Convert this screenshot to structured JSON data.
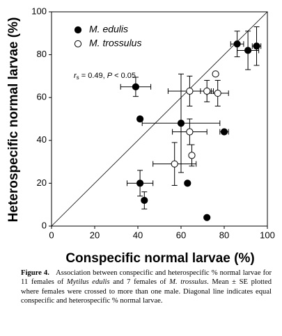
{
  "chart_data": {
    "type": "scatter",
    "xlabel": "Conspecific normal larvae (%)",
    "ylabel": "Heterospecific normal larvae (%)",
    "xlim": [
      0,
      100
    ],
    "ylim": [
      0,
      100
    ],
    "xticks": [
      0,
      20,
      40,
      60,
      80,
      100
    ],
    "yticks": [
      0,
      20,
      40,
      60,
      80,
      100
    ],
    "legend": "upper left",
    "annotation": [
      "r",
      "s",
      " = 0.49, ",
      "P",
      " < 0.05"
    ],
    "series": [
      {
        "name": "M. edulis",
        "color": "#000000",
        "fill": "#000000",
        "x": [
          39,
          41,
          60,
          41,
          43,
          63,
          72,
          80,
          86,
          91,
          95
        ],
        "y": [
          65,
          50,
          48,
          20,
          12,
          20,
          4,
          44,
          85,
          82,
          84
        ],
        "xerr": [
          7,
          null,
          18,
          6,
          null,
          null,
          null,
          2,
          3,
          5,
          2
        ],
        "yerr": [
          4.5,
          null,
          23,
          6,
          4,
          null,
          null,
          null,
          6,
          9,
          9
        ]
      },
      {
        "name": "M. trossulus",
        "color": "#000000",
        "fill": "#ffffff",
        "x": [
          64,
          72,
          76,
          77,
          64,
          65,
          57
        ],
        "y": [
          63,
          63,
          71,
          62,
          44,
          33,
          29
        ],
        "xerr": [
          10,
          3,
          null,
          5,
          8,
          null,
          10
        ],
        "yerr": [
          7,
          5,
          null,
          6,
          6,
          5,
          10
        ]
      }
    ]
  },
  "caption": {
    "label": "Figure 4.",
    "parts": [
      "Association between conspecific and heterospecific % normal larvae for 11 females of ",
      "Mytilus edulis",
      " and 7 females of ",
      "M. trossulus",
      ". Mean ± SE plotted where females were crossed to more than one male. Diagonal line indicates equal conspecific and heterospecific % normal larvae."
    ]
  }
}
